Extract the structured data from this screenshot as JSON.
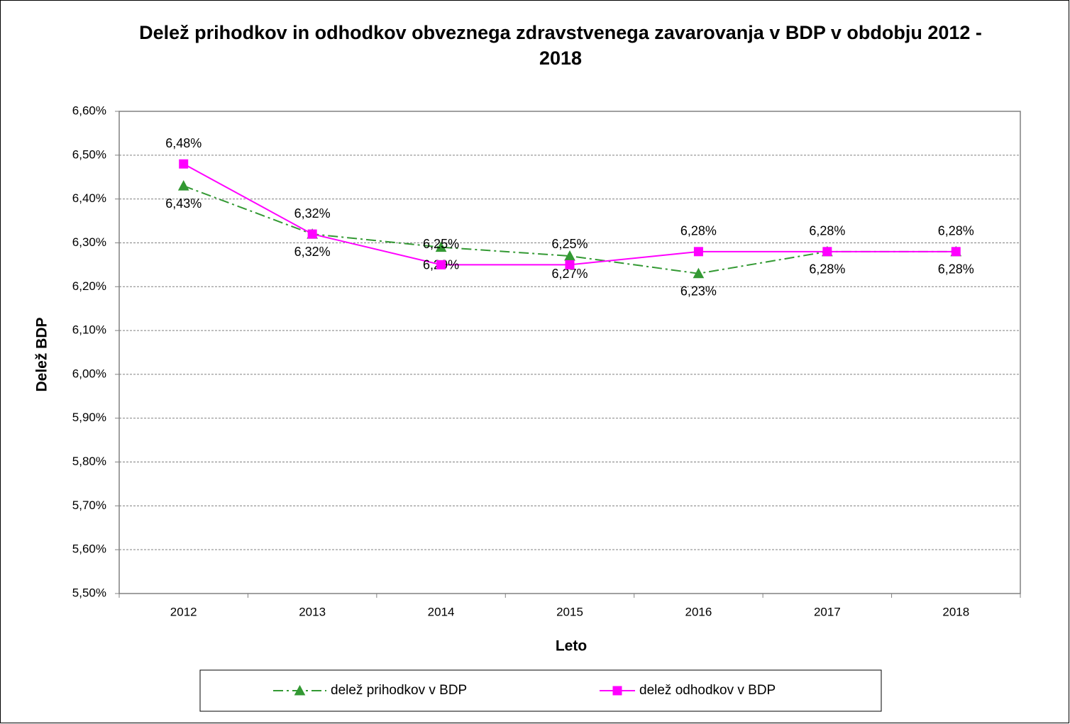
{
  "chart_data": {
    "type": "line",
    "title": "Delež prihodkov in odhodkov obveznega zdravstvenega zavarovanja v BDP v obdobju 2012 - 2018",
    "x_label": "Leto",
    "y_label": "Delež BDP",
    "categories": [
      "2012",
      "2013",
      "2014",
      "2015",
      "2016",
      "2017",
      "2018"
    ],
    "series": [
      {
        "name": "delež prihodkov v BDP",
        "color": "#339933",
        "marker": "triangle",
        "line_style": "dashdot",
        "values": [
          6.43,
          6.32,
          6.29,
          6.27,
          6.23,
          6.28,
          6.28
        ],
        "value_labels": [
          "6,43%",
          "6,32%",
          "6,29%",
          "6,27%",
          "6,23%",
          "6,28%",
          "6,28%"
        ]
      },
      {
        "name": "delež odhodkov v BDP",
        "color": "#ff00ff",
        "marker": "square",
        "line_style": "solid",
        "values": [
          6.48,
          6.32,
          6.25,
          6.25,
          6.28,
          6.28,
          6.28
        ],
        "value_labels": [
          "6,48%",
          "6,32%",
          "6,25%",
          "6,25%",
          "6,28%",
          "6,28%",
          "6,28%"
        ]
      }
    ],
    "ylim": [
      5.5,
      6.6
    ],
    "yticks": [
      {
        "value": 5.5,
        "label": "5,50%"
      },
      {
        "value": 5.6,
        "label": "5,60%"
      },
      {
        "value": 5.7,
        "label": "5,70%"
      },
      {
        "value": 5.8,
        "label": "5,80%"
      },
      {
        "value": 5.9,
        "label": "5,90%"
      },
      {
        "value": 6.0,
        "label": "6,00%"
      },
      {
        "value": 6.1,
        "label": "6,10%"
      },
      {
        "value": 6.2,
        "label": "6,20%"
      },
      {
        "value": 6.3,
        "label": "6,30%"
      },
      {
        "value": 6.4,
        "label": "6,40%"
      },
      {
        "value": 6.5,
        "label": "6,50%"
      },
      {
        "value": 6.6,
        "label": "6,60%"
      }
    ],
    "grid": true,
    "legend": "bottom"
  }
}
